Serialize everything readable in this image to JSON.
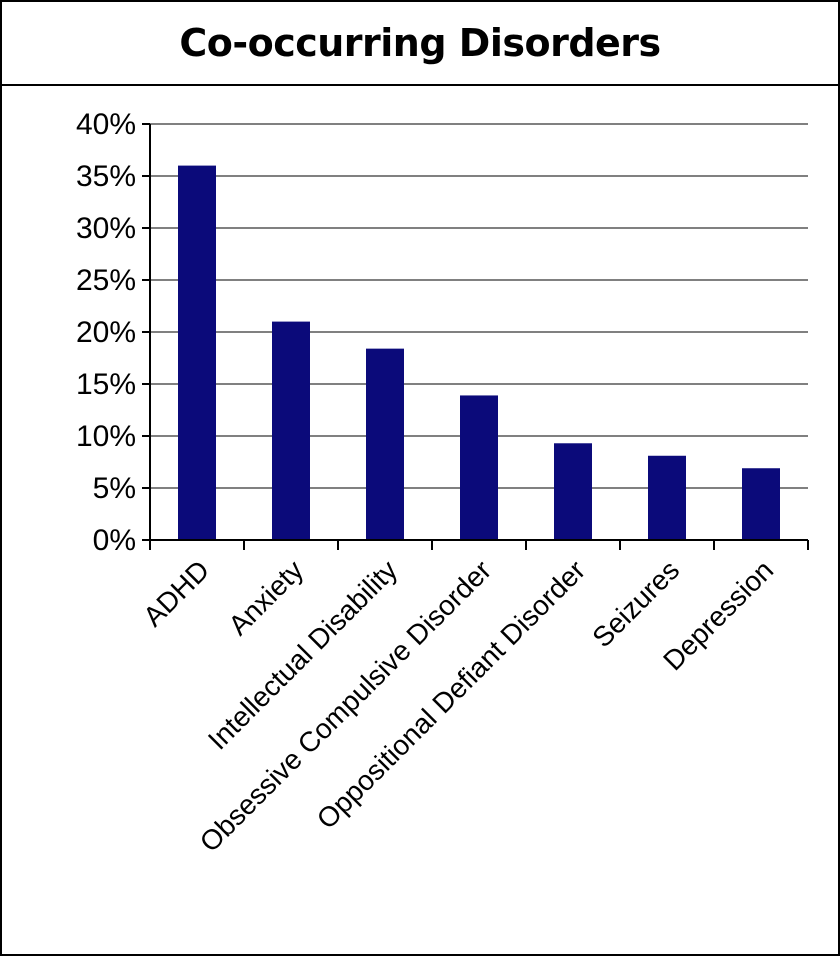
{
  "chart_data": {
    "type": "bar",
    "title": "Co-occurring Disorders",
    "categories": [
      "ADHD",
      "Anxiety",
      "Intellectual Disability",
      "Obsessive Compulsive Disorder",
      "Oppositional Defiant Disorder",
      "Seizures",
      "Depression"
    ],
    "values": [
      36,
      21,
      18.4,
      13.9,
      9.3,
      8.1,
      6.9
    ],
    "ylim": [
      0,
      40
    ],
    "yticks": [
      "0%",
      "5%",
      "10%",
      "15%",
      "20%",
      "25%",
      "30%",
      "35%",
      "40%"
    ],
    "ytick_values": [
      0,
      5,
      10,
      15,
      20,
      25,
      30,
      35,
      40
    ],
    "xlabel": "",
    "ylabel": "",
    "grid": true,
    "legend": "none",
    "bar_color": "#0b0a7a",
    "grid_color": "#808080"
  }
}
